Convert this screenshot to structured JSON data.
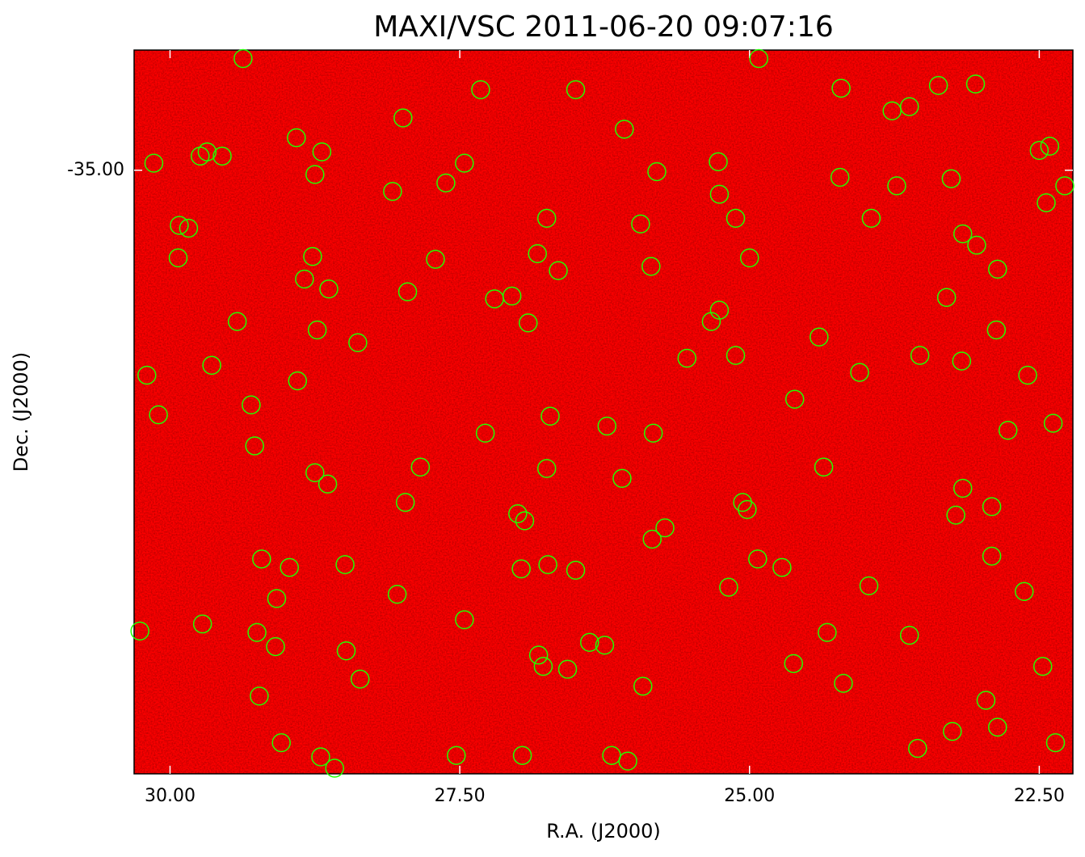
{
  "chart_data": {
    "type": "scatter",
    "title": "MAXI/VSC 2011-06-20 09:07:16",
    "xlabel": "R.A. (J2000)",
    "ylabel": "Dec. (J2000)",
    "color": "#22ff00",
    "xlim": [
      30.31,
      22.21
    ],
    "ylim": [
      -39.27,
      -34.15
    ],
    "xticks": [
      {
        "value": 30,
        "label": "30.00"
      },
      {
        "value": 27.5,
        "label": "27.50"
      },
      {
        "value": 25,
        "label": "25.00"
      },
      {
        "value": 22.5,
        "label": "22.50"
      }
    ],
    "yticks": [
      {
        "value": -35,
        "label": "-35.00"
      }
    ],
    "x": [
      29.37,
      27.32,
      26.5,
      24.92,
      24.21,
      23.37,
      23.05,
      27.99,
      23.77,
      23.62,
      26.08,
      28.91,
      28.69,
      29.74,
      29.68,
      29.55,
      30.14,
      27.46,
      25.27,
      22.5,
      22.41,
      25.8,
      28.75,
      24.22,
      23.26,
      27.62,
      28.08,
      25.26,
      23.73,
      22.28,
      22.44,
      29.92,
      29.84,
      26.75,
      25.12,
      25.94,
      23.95,
      23.16,
      23.04,
      29.93,
      28.77,
      27.71,
      26.83,
      25.85,
      25.0,
      22.86,
      26.65,
      28.84,
      28.63,
      27.95,
      27.2,
      27.05,
      23.3,
      25.26,
      29.42,
      25.33,
      26.91,
      28.73,
      28.38,
      24.4,
      22.87,
      25.54,
      25.12,
      23.53,
      23.17,
      30.2,
      29.64,
      28.9,
      24.05,
      22.6,
      30.1,
      29.3,
      26.72,
      24.61,
      29.27,
      27.28,
      26.23,
      25.83,
      22.77,
      22.38,
      28.75,
      28.64,
      27.84,
      26.75,
      26.1,
      24.36,
      23.16,
      27.97,
      27.0,
      26.94,
      25.06,
      25.02,
      23.22,
      22.91,
      25.73,
      25.84,
      29.21,
      28.97,
      28.49,
      26.97,
      26.74,
      26.5,
      24.93,
      24.72,
      22.91,
      29.08,
      28.04,
      25.18,
      23.97,
      22.63,
      30.26,
      29.72,
      29.25,
      29.09,
      27.46,
      28.48,
      26.38,
      26.25,
      24.33,
      23.62,
      26.82,
      26.78,
      26.57,
      24.62,
      22.47,
      28.36,
      29.23,
      25.92,
      24.19,
      22.96,
      23.25,
      22.86,
      29.04,
      28.7,
      28.58,
      27.53,
      26.96,
      26.19,
      26.05,
      23.55,
      22.36
    ],
    "values": [
      -34.21,
      -34.43,
      -34.43,
      -34.21,
      -34.42,
      -34.4,
      -34.39,
      -34.63,
      -34.58,
      -34.55,
      -34.71,
      -34.77,
      -34.87,
      -34.9,
      -34.87,
      -34.9,
      -34.95,
      -34.95,
      -34.94,
      -34.86,
      -34.83,
      -35.01,
      -35.03,
      -35.05,
      -35.06,
      -35.09,
      -35.15,
      -35.17,
      -35.11,
      -35.11,
      -35.23,
      -35.39,
      -35.41,
      -35.34,
      -35.34,
      -35.38,
      -35.34,
      -35.45,
      -35.53,
      -35.62,
      -35.61,
      -35.63,
      -35.59,
      -35.68,
      -35.62,
      -35.7,
      -35.71,
      -35.77,
      -35.84,
      -35.86,
      -35.91,
      -35.89,
      -35.9,
      -35.99,
      -36.07,
      -36.07,
      -36.08,
      -36.13,
      -36.22,
      -36.18,
      -36.13,
      -36.33,
      -36.31,
      -36.31,
      -36.35,
      -36.45,
      -36.38,
      -36.49,
      -36.43,
      -36.45,
      -36.73,
      -36.66,
      -36.74,
      -36.62,
      -36.95,
      -36.86,
      -36.81,
      -36.86,
      -36.84,
      -36.79,
      -37.14,
      -37.22,
      -37.1,
      -37.11,
      -37.18,
      -37.1,
      -37.25,
      -37.35,
      -37.43,
      -37.48,
      -37.35,
      -37.4,
      -37.44,
      -37.38,
      -37.53,
      -37.61,
      -37.75,
      -37.81,
      -37.79,
      -37.82,
      -37.79,
      -37.83,
      -37.75,
      -37.81,
      -37.73,
      -38.03,
      -38.0,
      -37.95,
      -37.94,
      -37.98,
      -38.26,
      -38.21,
      -38.27,
      -38.37,
      -38.18,
      -38.4,
      -38.34,
      -38.36,
      -38.27,
      -38.29,
      -38.43,
      -38.51,
      -38.53,
      -38.49,
      -38.51,
      -38.6,
      -38.72,
      -38.65,
      -38.63,
      -38.75,
      -38.97,
      -38.94,
      -39.05,
      -39.15,
      -39.23,
      -39.14,
      -39.14,
      -39.14,
      -39.18,
      -39.09,
      -39.05
    ]
  }
}
